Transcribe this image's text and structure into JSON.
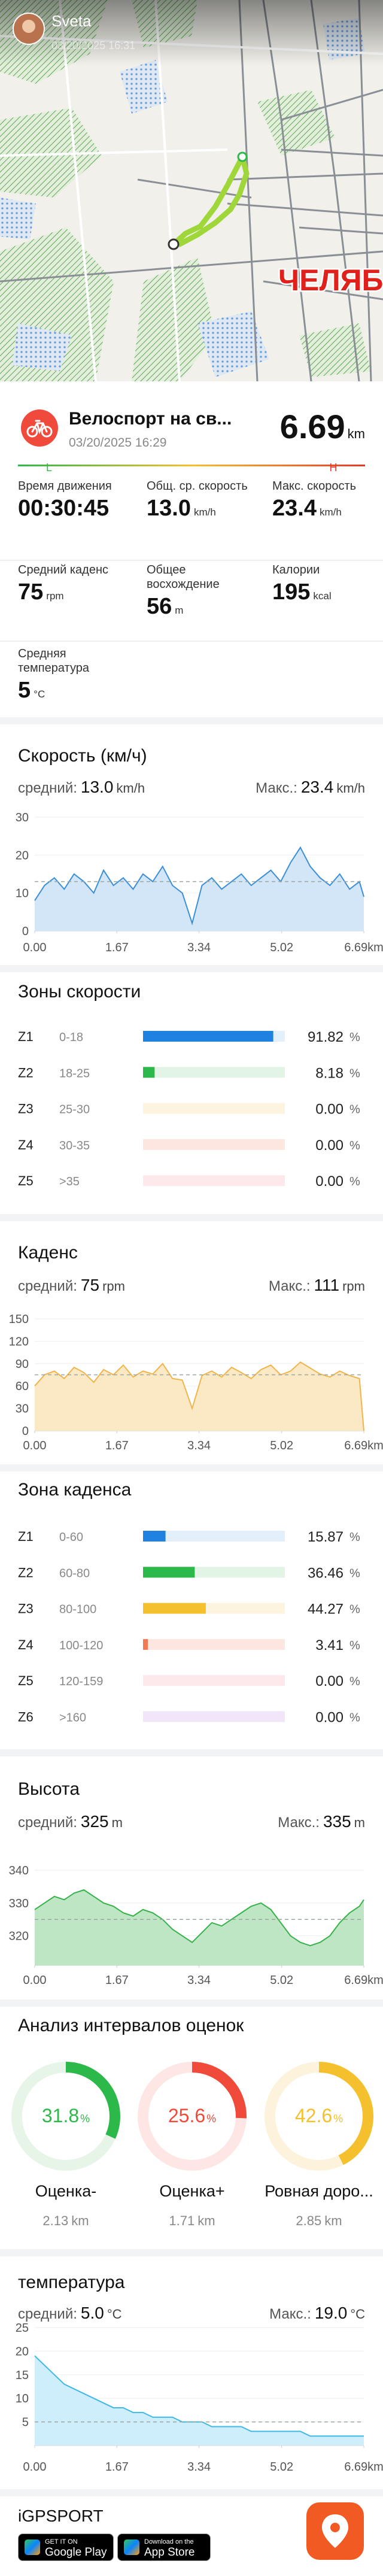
{
  "map": {
    "user": "Sveta",
    "time": "03/20/2025 16:31",
    "city": "ЧЕЛЯБ"
  },
  "activity": {
    "title": "Велоспорт на св...",
    "date": "03/20/2025 16:29",
    "distance": "6.69",
    "distance_unit": "km",
    "low": "L",
    "high": "H"
  },
  "stats": [
    {
      "label": "Время движения",
      "value": "00:30:45"
    },
    {
      "label": "Общ. ср. скорость",
      "value": "13.0",
      "unit": "km/h"
    },
    {
      "label": "Макс. скорость",
      "value": "23.4",
      "unit": "km/h"
    },
    {
      "label": "Средний каденс",
      "value": "75",
      "unit": "rpm"
    },
    {
      "label": "Общее восхождение",
      "value": "56",
      "unit": "m"
    },
    {
      "label": "Калории",
      "value": "195",
      "unit": "kcal"
    },
    {
      "label": "Средняя температура",
      "value": "5",
      "unit": "°C"
    }
  ],
  "speed": {
    "title": "Скорость (км/ч)",
    "avg_label": "средний:",
    "avg": "13.0",
    "avg_unit": "km/h",
    "max_label": "Макс.:",
    "max": "23.4",
    "max_unit": "km/h",
    "chart": {
      "type": "area",
      "color": "#3b8fd8",
      "fill": "#d3e6f8",
      "x": [
        0,
        0.2,
        0.4,
        0.6,
        0.8,
        1,
        1.2,
        1.4,
        1.6,
        1.8,
        2,
        2.2,
        2.4,
        2.6,
        2.8,
        3,
        3.2,
        3.4,
        3.6,
        3.8,
        4,
        4.2,
        4.4,
        4.6,
        4.8,
        5,
        5.2,
        5.4,
        5.6,
        5.8,
        6,
        6.2,
        6.4,
        6.6,
        6.69
      ],
      "values": [
        8,
        12,
        14,
        11,
        15,
        13,
        10,
        16,
        12,
        14,
        11,
        15,
        13,
        17,
        12,
        10,
        2,
        12,
        14,
        11,
        13,
        15,
        12,
        14,
        16,
        13,
        18,
        22,
        17,
        14,
        12,
        15,
        11,
        13,
        9
      ],
      "xlim": [
        0,
        6.69
      ],
      "ylim": [
        0,
        30
      ],
      "xticks": [
        {
          "value": 0,
          "label": "0.00"
        },
        1.67,
        3.34,
        5.02,
        {
          "value": 6.69,
          "label": "6.69km"
        }
      ],
      "yticks": [
        0,
        10,
        20,
        30
      ]
    }
  },
  "speed_zones": {
    "title": "Зоны скорости",
    "unit": "%",
    "zones": [
      {
        "name": "Z1",
        "range": "0-18",
        "value": 91.82,
        "color": "#1f82e0",
        "track": "#e3effb"
      },
      {
        "name": "Z2",
        "range": "18-25",
        "value": 8.18,
        "color": "#2db84a",
        "track": "#e2f4e5"
      },
      {
        "name": "Z3",
        "range": "25-30",
        "value": 0,
        "value_label": "0.00",
        "color": "#f5c02e",
        "track": "#fdf4e0"
      },
      {
        "name": "Z4",
        "range": "30-35",
        "value": 0,
        "value_label": "0.00",
        "color": "#f27a52",
        "track": "#fde5e0"
      },
      {
        "name": "Z5",
        "range": ">35",
        "value": 0,
        "value_label": "0.00",
        "color": "#f07a95",
        "track": "#fde8ec"
      }
    ]
  },
  "cadence": {
    "title": "Каденс",
    "avg_label": "средний:",
    "avg": "75",
    "avg_unit": "rpm",
    "max_label": "Макс.:",
    "max": "111",
    "max_unit": "rpm",
    "chart": {
      "type": "area",
      "color": "#f0b54a",
      "fill": "#fbe9c6",
      "x": [
        0,
        0.2,
        0.4,
        0.6,
        0.8,
        1,
        1.2,
        1.4,
        1.6,
        1.8,
        2,
        2.2,
        2.4,
        2.6,
        2.8,
        3,
        3.2,
        3.4,
        3.6,
        3.8,
        4,
        4.2,
        4.4,
        4.6,
        4.8,
        5,
        5.2,
        5.4,
        5.6,
        5.8,
        6,
        6.2,
        6.4,
        6.6,
        6.69
      ],
      "values": [
        60,
        75,
        80,
        70,
        85,
        78,
        65,
        82,
        75,
        88,
        72,
        80,
        76,
        90,
        70,
        68,
        30,
        74,
        80,
        72,
        85,
        78,
        70,
        82,
        88,
        75,
        80,
        92,
        84,
        76,
        72,
        80,
        74,
        70,
        0
      ],
      "xlim": [
        0,
        6.69
      ],
      "ylim": [
        0,
        150
      ],
      "xticks": [
        {
          "value": 0,
          "label": "0.00"
        },
        1.67,
        3.34,
        5.02,
        {
          "value": 6.69,
          "label": "6.69km"
        }
      ],
      "yticks": [
        0,
        30,
        60,
        90,
        120,
        150
      ]
    }
  },
  "cadence_zones": {
    "title": "Зона каденса",
    "unit": "%",
    "zones": [
      {
        "name": "Z1",
        "range": "0-60",
        "value": 15.87,
        "color": "#1f82e0",
        "track": "#e3effb"
      },
      {
        "name": "Z2",
        "range": "60-80",
        "value": 36.46,
        "color": "#2db84a",
        "track": "#e2f4e5"
      },
      {
        "name": "Z3",
        "range": "80-100",
        "value": 44.27,
        "color": "#f5c02e",
        "track": "#fdf4e0"
      },
      {
        "name": "Z4",
        "range": "100-120",
        "value": 3.41,
        "color": "#f27a52",
        "track": "#fde5e0"
      },
      {
        "name": "Z5",
        "range": "120-159",
        "value": 0,
        "value_label": "0.00",
        "color": "#f07a95",
        "track": "#fde8ec"
      },
      {
        "name": "Z6",
        "range": ">160",
        "value": 0,
        "value_label": "0.00",
        "color": "#b57be0",
        "track": "#f1e6f9"
      }
    ]
  },
  "altitude": {
    "title": "Высота",
    "avg_label": "средний:",
    "avg": "325",
    "avg_unit": "m",
    "max_label": "Макс.:",
    "max": "335",
    "max_unit": "m",
    "chart": {
      "type": "area",
      "color": "#35b24a",
      "fill": "#bfe6c4",
      "x": [
        0,
        0.2,
        0.4,
        0.6,
        0.8,
        1,
        1.2,
        1.4,
        1.6,
        1.8,
        2,
        2.2,
        2.4,
        2.6,
        2.8,
        3,
        3.2,
        3.4,
        3.6,
        3.8,
        4,
        4.2,
        4.4,
        4.6,
        4.8,
        5,
        5.2,
        5.4,
        5.6,
        5.8,
        6,
        6.2,
        6.4,
        6.6,
        6.69
      ],
      "values": [
        328,
        330,
        332,
        331,
        333,
        334,
        332,
        330,
        329,
        327,
        326,
        328,
        327,
        325,
        322,
        320,
        318,
        321,
        324,
        323,
        325,
        327,
        329,
        330,
        328,
        324,
        320,
        318,
        317,
        318,
        320,
        324,
        327,
        329,
        331
      ],
      "xlim": [
        0,
        6.69
      ],
      "ylim": [
        311,
        342
      ],
      "xticks": [
        {
          "value": 0,
          "label": "0.00"
        },
        1.67,
        3.34,
        5.02,
        {
          "value": 6.69,
          "label": "6.69km"
        }
      ],
      "yticks": [
        320,
        330,
        340
      ]
    }
  },
  "ratings": {
    "title": "Анализ интервалов оценок",
    "unit": "%",
    "dist_unit": "km",
    "items": [
      {
        "name": "Оценка-",
        "value": 31.8,
        "distance": 2.13,
        "color": "#2db84a",
        "track": "#e6f5e8"
      },
      {
        "name": "Оценка+",
        "value": 25.6,
        "distance": 1.71,
        "color": "#f04a3a",
        "track": "#fde6e3"
      },
      {
        "name": "Ровная доро...",
        "value": 42.6,
        "distance": 2.85,
        "color": "#f5c02e",
        "track": "#fdf3dc"
      }
    ]
  },
  "temperature": {
    "title": "температура",
    "avg_label": "средний:",
    "avg": "5.0",
    "avg_unit": "°C",
    "max_label": "Макс.:",
    "max": "19.0",
    "max_unit": "°C",
    "chart": {
      "type": "area",
      "color": "#3fb8e6",
      "fill": "#cdeefa",
      "x": [
        0,
        0.2,
        0.4,
        0.6,
        0.8,
        1,
        1.2,
        1.4,
        1.6,
        1.8,
        2,
        2.2,
        2.4,
        2.6,
        2.8,
        3,
        3.2,
        3.4,
        3.6,
        3.8,
        4,
        4.2,
        4.4,
        4.6,
        4.8,
        5,
        5.2,
        5.4,
        5.6,
        5.8,
        6,
        6.2,
        6.4,
        6.6,
        6.69
      ],
      "values": [
        19,
        17,
        15,
        13,
        12,
        11,
        10,
        9,
        8,
        8,
        7,
        7,
        6,
        6,
        6,
        5,
        5,
        5,
        4,
        4,
        4,
        4,
        3,
        3,
        3,
        3,
        3,
        3,
        2,
        2,
        2,
        2,
        2,
        2,
        2
      ],
      "xlim": [
        0,
        6.69
      ],
      "ylim": [
        0,
        25
      ],
      "xticks": [
        {
          "value": 0,
          "label": "0.00"
        },
        1.67,
        3.34,
        5.02,
        {
          "value": 6.69,
          "label": "6.69km"
        }
      ],
      "yticks": [
        5,
        10,
        15,
        20,
        25
      ]
    }
  },
  "footer": {
    "brand": "iGPSPORT",
    "google_small": "GET IT ON",
    "google": "Google Play",
    "apple_small": "Download on the",
    "apple": "App Store"
  }
}
